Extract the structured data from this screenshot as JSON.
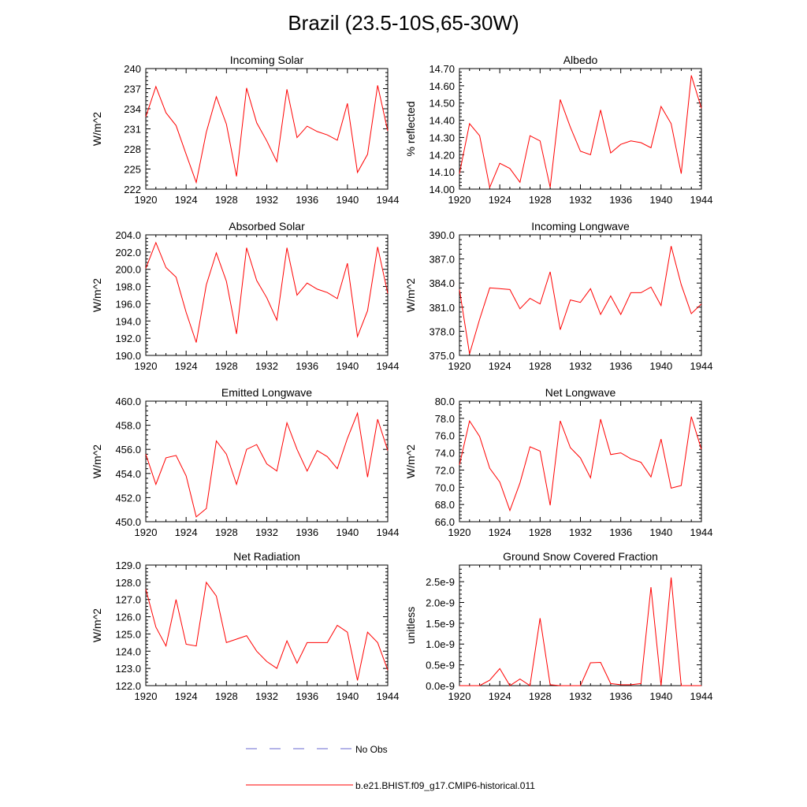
{
  "title": "Brazil (23.5-10S,65-30W)",
  "colors": {
    "model": "#ff0000",
    "obs": "#6a6ad0",
    "axis": "#000000"
  },
  "legend": {
    "obs_label": "No Obs",
    "model_label": "b.e21.BHIST.f09_g17.CMIP6-historical.011"
  },
  "chart_data": [
    {
      "type": "line",
      "title": "Incoming Solar",
      "ylabel": "W/m^2",
      "xlabel": "",
      "xlim": [
        1920,
        1944
      ],
      "ylim": [
        222,
        240
      ],
      "xticks": [
        "1920",
        "1924",
        "1928",
        "1932",
        "1936",
        "1940",
        "1944"
      ],
      "yticks": [
        "222",
        "225",
        "228",
        "231",
        "234",
        "237",
        "240"
      ],
      "x": [
        1920,
        1921,
        1922,
        1923,
        1924,
        1925,
        1926,
        1927,
        1928,
        1929,
        1930,
        1931,
        1932,
        1933,
        1934,
        1935,
        1936,
        1937,
        1938,
        1939,
        1940,
        1941,
        1942,
        1943,
        1944
      ],
      "series": [
        {
          "values": [
            232.8,
            237.3,
            233.4,
            231.5,
            227.2,
            223.0,
            230.5,
            235.8,
            231.7,
            223.9,
            237.1,
            231.9,
            229.2,
            226.1,
            236.9,
            229.7,
            231.4,
            230.6,
            230.1,
            229.3,
            234.8,
            224.5,
            227.2,
            237.5,
            230.7
          ]
        }
      ]
    },
    {
      "type": "line",
      "title": "Albedo",
      "ylabel": "% reflected",
      "xlabel": "",
      "xlim": [
        1920,
        1944
      ],
      "ylim": [
        14.0,
        14.7
      ],
      "xticks": [
        "1920",
        "1924",
        "1928",
        "1932",
        "1936",
        "1940",
        "1944"
      ],
      "yticks": [
        "14.00",
        "14.10",
        "14.20",
        "14.30",
        "14.40",
        "14.50",
        "14.60",
        "14.70"
      ],
      "x": [
        1920,
        1921,
        1922,
        1923,
        1924,
        1925,
        1926,
        1927,
        1928,
        1929,
        1930,
        1931,
        1932,
        1933,
        1934,
        1935,
        1936,
        1937,
        1938,
        1939,
        1940,
        1941,
        1942,
        1943,
        1944
      ],
      "series": [
        {
          "values": [
            14.09,
            14.38,
            14.31,
            14.01,
            14.15,
            14.12,
            14.04,
            14.31,
            14.28,
            14.01,
            14.52,
            14.36,
            14.22,
            14.2,
            14.46,
            14.21,
            14.26,
            14.28,
            14.27,
            14.24,
            14.48,
            14.38,
            14.09,
            14.66,
            14.47
          ]
        }
      ]
    },
    {
      "type": "line",
      "title": "Absorbed Solar",
      "ylabel": "W/m^2",
      "xlabel": "",
      "xlim": [
        1920,
        1944
      ],
      "ylim": [
        190,
        204
      ],
      "xticks": [
        "1920",
        "1924",
        "1928",
        "1932",
        "1936",
        "1940",
        "1944"
      ],
      "yticks": [
        "190.0",
        "192.0",
        "194.0",
        "196.0",
        "198.0",
        "200.0",
        "202.0",
        "204.0"
      ],
      "x": [
        1920,
        1921,
        1922,
        1923,
        1924,
        1925,
        1926,
        1927,
        1928,
        1929,
        1930,
        1931,
        1932,
        1933,
        1934,
        1935,
        1936,
        1937,
        1938,
        1939,
        1940,
        1941,
        1942,
        1943,
        1944
      ],
      "series": [
        {
          "values": [
            200.1,
            203.1,
            200.2,
            199.1,
            195.0,
            191.5,
            198.2,
            201.9,
            198.6,
            192.5,
            202.5,
            198.7,
            196.7,
            194.1,
            202.5,
            197.0,
            198.4,
            197.7,
            197.3,
            196.6,
            200.7,
            192.2,
            195.2,
            202.6,
            197.2
          ]
        }
      ]
    },
    {
      "type": "line",
      "title": "Incoming Longwave",
      "ylabel": "W/m^2",
      "xlabel": "",
      "xlim": [
        1920,
        1944
      ],
      "ylim": [
        375,
        390
      ],
      "xticks": [
        "1920",
        "1924",
        "1928",
        "1932",
        "1936",
        "1940",
        "1944"
      ],
      "yticks": [
        "375.0",
        "378.0",
        "381.0",
        "384.0",
        "387.0",
        "390.0"
      ],
      "x": [
        1920,
        1921,
        1922,
        1923,
        1924,
        1925,
        1926,
        1927,
        1928,
        1929,
        1930,
        1931,
        1932,
        1933,
        1934,
        1935,
        1936,
        1937,
        1938,
        1939,
        1940,
        1941,
        1942,
        1943,
        1944
      ],
      "series": [
        {
          "values": [
            383.2,
            375.2,
            379.5,
            383.4,
            383.3,
            383.2,
            380.8,
            382.1,
            381.4,
            385.4,
            378.2,
            381.9,
            381.6,
            383.3,
            380.1,
            382.4,
            380.1,
            382.8,
            382.8,
            383.5,
            381.2,
            388.6,
            383.8,
            380.2,
            381.4
          ]
        }
      ]
    },
    {
      "type": "line",
      "title": "Emitted Longwave",
      "ylabel": "W/m^2",
      "xlabel": "",
      "xlim": [
        1920,
        1944
      ],
      "ylim": [
        450,
        460
      ],
      "xticks": [
        "1920",
        "1924",
        "1928",
        "1932",
        "1936",
        "1940",
        "1944"
      ],
      "yticks": [
        "450.0",
        "452.0",
        "454.0",
        "456.0",
        "458.0",
        "460.0"
      ],
      "x": [
        1920,
        1921,
        1922,
        1923,
        1924,
        1925,
        1926,
        1927,
        1928,
        1929,
        1930,
        1931,
        1932,
        1933,
        1934,
        1935,
        1936,
        1937,
        1938,
        1939,
        1940,
        1941,
        1942,
        1943,
        1944
      ],
      "series": [
        {
          "values": [
            455.6,
            453.1,
            455.3,
            455.5,
            453.8,
            450.4,
            451.1,
            456.7,
            455.6,
            453.1,
            456.0,
            456.4,
            454.8,
            454.2,
            458.2,
            456.0,
            454.2,
            455.9,
            455.4,
            454.4,
            456.9,
            459.0,
            453.7,
            458.5,
            455.9
          ]
        }
      ]
    },
    {
      "type": "line",
      "title": "Net Longwave",
      "ylabel": "W/m^2",
      "xlabel": "",
      "xlim": [
        1920,
        1944
      ],
      "ylim": [
        66,
        80
      ],
      "xticks": [
        "1920",
        "1924",
        "1928",
        "1932",
        "1936",
        "1940",
        "1944"
      ],
      "yticks": [
        "66.0",
        "68.0",
        "70.0",
        "72.0",
        "74.0",
        "76.0",
        "78.0",
        "80.0"
      ],
      "x": [
        1920,
        1921,
        1922,
        1923,
        1924,
        1925,
        1926,
        1927,
        1928,
        1929,
        1930,
        1931,
        1932,
        1933,
        1934,
        1935,
        1936,
        1937,
        1938,
        1939,
        1940,
        1941,
        1942,
        1943,
        1944
      ],
      "series": [
        {
          "values": [
            72.6,
            77.7,
            75.9,
            72.2,
            70.6,
            67.3,
            70.5,
            74.7,
            74.2,
            67.9,
            77.7,
            74.6,
            73.4,
            71.1,
            77.9,
            73.8,
            74.0,
            73.3,
            72.9,
            71.2,
            75.6,
            69.9,
            70.2,
            78.2,
            74.4
          ]
        }
      ]
    },
    {
      "type": "line",
      "title": "Net Radiation",
      "ylabel": "W/m^2",
      "xlabel": "",
      "xlim": [
        1920,
        1944
      ],
      "ylim": [
        122,
        129
      ],
      "xticks": [
        "1920",
        "1924",
        "1928",
        "1932",
        "1936",
        "1940",
        "1944"
      ],
      "yticks": [
        "122.0",
        "123.0",
        "124.0",
        "125.0",
        "126.0",
        "127.0",
        "128.0",
        "129.0"
      ],
      "x": [
        1920,
        1921,
        1922,
        1923,
        1924,
        1925,
        1926,
        1927,
        1928,
        1929,
        1930,
        1931,
        1932,
        1933,
        1934,
        1935,
        1936,
        1937,
        1938,
        1939,
        1940,
        1941,
        1942,
        1943,
        1944
      ],
      "series": [
        {
          "values": [
            127.6,
            125.4,
            124.3,
            127.0,
            124.4,
            124.3,
            128.0,
            127.2,
            124.5,
            124.7,
            124.9,
            124.0,
            123.4,
            123.0,
            124.6,
            123.3,
            124.5,
            124.5,
            124.5,
            125.5,
            125.1,
            122.3,
            125.1,
            124.5,
            122.9
          ]
        }
      ]
    },
    {
      "type": "line",
      "title": "Ground Snow Covered Fraction",
      "ylabel": "unitless",
      "xlabel": "",
      "xlim": [
        1920,
        1944
      ],
      "ylim": [
        0,
        2.9e-09
      ],
      "xticks": [
        "1920",
        "1924",
        "1928",
        "1932",
        "1936",
        "1940",
        "1944"
      ],
      "ytick_values": [
        0,
        5e-10,
        1e-09,
        1.5e-09,
        2e-09,
        2.5e-09
      ],
      "yticks": [
        "0.0e-9",
        "0.5e-9",
        "1.0e-9",
        "1.5e-9",
        "2.0e-9",
        "2.5e-9"
      ],
      "x": [
        1920,
        1921,
        1922,
        1923,
        1924,
        1925,
        1926,
        1927,
        1928,
        1929,
        1930,
        1931,
        1932,
        1933,
        1934,
        1935,
        1936,
        1937,
        1938,
        1939,
        1940,
        1941,
        1942,
        1943,
        1944
      ],
      "series": [
        {
          "values": [
            0,
            0,
            0,
            1.3e-10,
            4.1e-10,
            0,
            1.6e-10,
            0,
            1.62e-09,
            2e-11,
            0,
            0,
            0,
            5.5e-10,
            5.6e-10,
            5e-11,
            2e-11,
            2e-11,
            5e-11,
            2.37e-09,
            0,
            2.6e-09,
            0,
            0,
            0
          ]
        }
      ]
    }
  ]
}
